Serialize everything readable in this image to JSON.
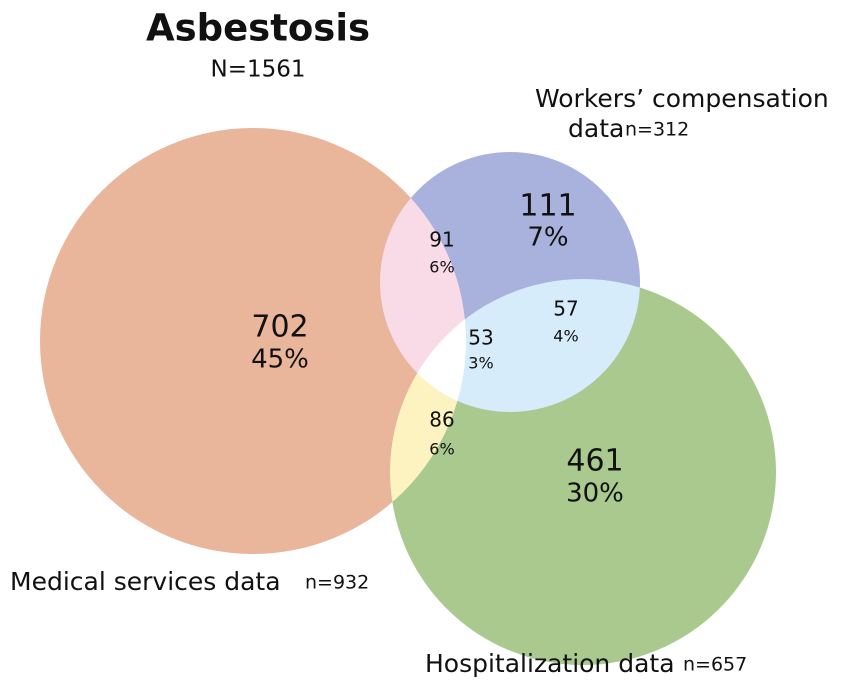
{
  "title": "Asbestosis",
  "total": "N=1561",
  "sets": [
    {
      "label": [
        "Medical services data"
      ],
      "n": "n=932"
    },
    {
      "label": [
        "Workers’ compensation",
        "data"
      ],
      "n": "n=312"
    },
    {
      "label": [
        "Hospitalization data"
      ],
      "n": "n=657"
    }
  ],
  "regions": [
    {
      "count": "702",
      "percent": "45%"
    },
    {
      "count": "111",
      "percent": "7%"
    },
    {
      "count": "461",
      "percent": "30%"
    },
    {
      "count": "91",
      "percent": "6%"
    },
    {
      "count": "86",
      "percent": "6%"
    },
    {
      "count": "57",
      "percent": "4%"
    },
    {
      "count": "53",
      "percent": "3%"
    }
  ]
}
